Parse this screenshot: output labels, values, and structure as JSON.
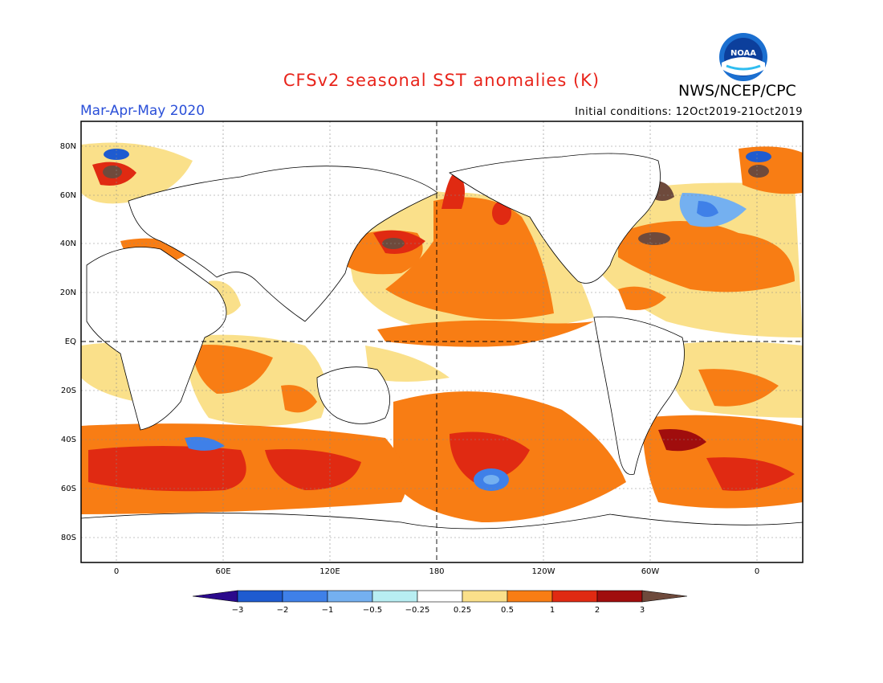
{
  "title": "CFSv2 seasonal SST anomalies (K)",
  "org": "NWS/NCEP/CPC",
  "season": "Mar-Apr-May 2020",
  "initial_conditions": "Initial conditions: 12Oct2019-21Oct2019",
  "logo_text": "NOAA",
  "lat_labels": [
    "80N",
    "60N",
    "40N",
    "20N",
    "EQ",
    "20S",
    "40S",
    "60S",
    "80S"
  ],
  "lon_labels": [
    "0",
    "60E",
    "120E",
    "180",
    "120W",
    "60W",
    "0"
  ],
  "colorbar": {
    "labels": [
      "-3",
      "-2",
      "-1",
      "-0.5",
      "-0.25",
      "0.25",
      "0.5",
      "1",
      "2",
      "3"
    ],
    "colors": [
      "#2b0a8c",
      "#1e5bd0",
      "#3f80e8",
      "#74b0f0",
      "#b8eef2",
      "#ffffff",
      "#fae08a",
      "#f87d14",
      "#e02a12",
      "#a00d0d",
      "#6e4a3c"
    ]
  },
  "colors": {
    "title": "#e8241b",
    "season": "#2a4fd8"
  }
}
